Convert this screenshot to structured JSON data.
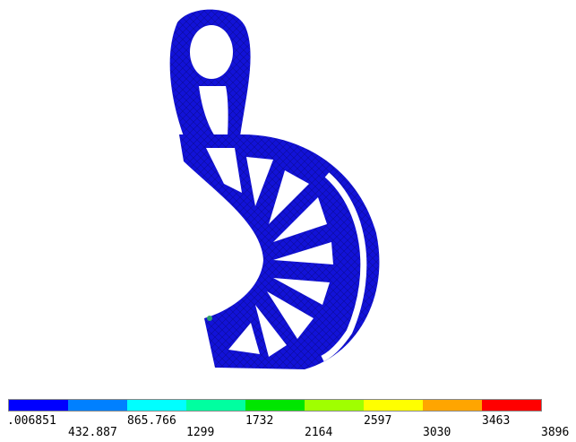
{
  "legend": {
    "colors": [
      "#0000ff",
      "#0080ff",
      "#00ffff",
      "#00ffa0",
      "#00e600",
      "#a0ff00",
      "#ffff00",
      "#ffa500",
      "#ff0000"
    ],
    "labels": [
      ".006851",
      "432.887",
      "865.766",
      "1299",
      "1732",
      "2164",
      "2597",
      "3030",
      "3463",
      "3896"
    ]
  }
}
